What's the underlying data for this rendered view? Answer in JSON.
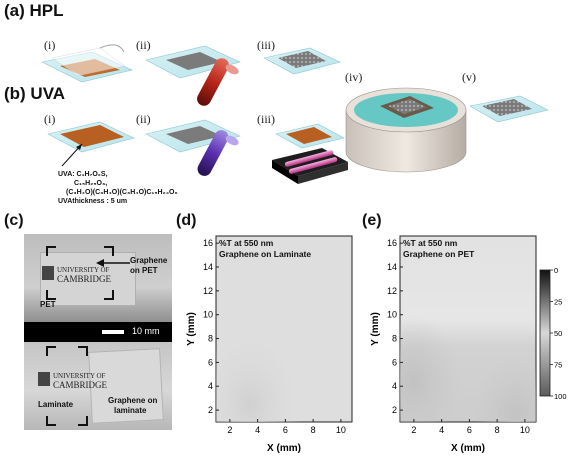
{
  "panel_a": {
    "label": "(a) HPL",
    "steps": [
      "(i)",
      "(ii)",
      "(iii)",
      "(iv)",
      "(v)"
    ]
  },
  "panel_b": {
    "label": "(b) UVA",
    "steps": [
      "(i)",
      "(ii)",
      "(iii)"
    ],
    "uva_annotation": {
      "line1": "UVA: C₁H₇O₂S,",
      "line2": "C₁₅H₂₅O₃,",
      "line3": "(C₃H₄O)(C₃H₄O)(C₃H₄O)C₁₅H₂₄O₆",
      "line4": "UVAthickness : 5 um"
    }
  },
  "panel_c": {
    "label": "(c)",
    "top_photo": {
      "logo_line1": "UNIVERSITY OF",
      "logo_line2": "CAMBRIDGE",
      "graphene_label_1": "Graphene",
      "graphene_label_2": "on PET",
      "substrate_label": "PET"
    },
    "scale_bar": "10 mm",
    "bottom_photo": {
      "logo_line1": "UNIVERSITY OF",
      "logo_line2": "CAMBRIDGE",
      "substrate_label": "Laminate",
      "graphene_label_1": "Graphene on",
      "graphene_label_2": "laminate"
    }
  },
  "chart_data": [
    {
      "panel": "(d)",
      "type": "heatmap",
      "annotation_line1": "%T at 550 nm",
      "annotation_line2": "Graphene on Laminate",
      "xlabel": "X (mm)",
      "ylabel": "Y (mm)",
      "xlim": [
        1,
        10.8
      ],
      "ylim": [
        1,
        16.6
      ],
      "xticks": [
        "2",
        "4",
        "6",
        "8",
        "10"
      ],
      "yticks": [
        "2",
        "4",
        "6",
        "8",
        "10",
        "12",
        "14",
        "16"
      ],
      "transmittance_range": [
        88,
        92
      ]
    },
    {
      "panel": "(e)",
      "type": "heatmap",
      "annotation_line1": "%T at 550 nm",
      "annotation_line2": "Graphene on PET",
      "xlabel": "X (mm)",
      "ylabel": "Y (mm)",
      "xlim": [
        1,
        10.8
      ],
      "ylim": [
        1,
        16.6
      ],
      "xticks": [
        "2",
        "4",
        "6",
        "8",
        "10"
      ],
      "yticks": [
        "2",
        "4",
        "6",
        "8",
        "10",
        "12",
        "14",
        "16"
      ],
      "transmittance_range": [
        86,
        92
      ]
    }
  ],
  "colorbar": {
    "ticks": [
      "0",
      "25",
      "50",
      "75",
      "100"
    ],
    "colormap": [
      "#111111",
      "#d8d8d8",
      "#5a5a5a"
    ]
  }
}
